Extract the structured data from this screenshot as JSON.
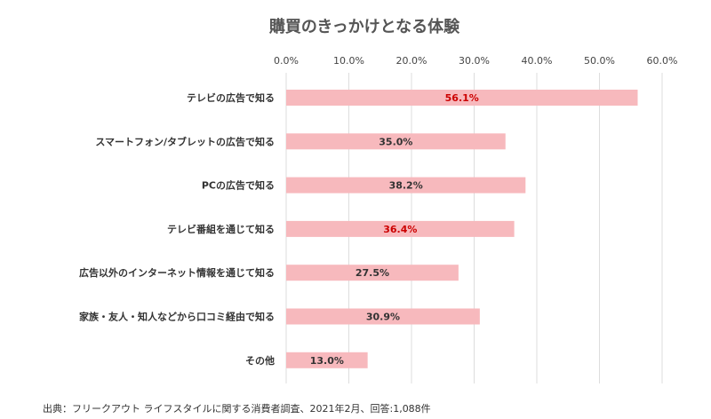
{
  "chart_data": {
    "type": "bar",
    "orientation": "horizontal",
    "title": "購買のきっかけとなる体験",
    "categories": [
      "テレビの広告で知る",
      "スマートフォン/タブレットの広告で知る",
      "PCの広告で知る",
      "テレビ番組を通じて知る",
      "広告以外のインターネット情報を通じて知る",
      "家族・友人・知人などから口コミ経由で知る",
      "その他"
    ],
    "values": [
      56.1,
      35.0,
      38.2,
      36.4,
      27.5,
      30.9,
      13.0
    ],
    "value_labels": [
      "56.1%",
      "35.0%",
      "38.2%",
      "36.4%",
      "27.5%",
      "30.9%",
      "13.0%"
    ],
    "highlighted": [
      true,
      false,
      false,
      true,
      false,
      false,
      false
    ],
    "xlim": [
      0,
      60
    ],
    "xticks": [
      0,
      10,
      20,
      30,
      40,
      50,
      60
    ],
    "xtick_labels": [
      "0.0%",
      "10.0%",
      "20.0%",
      "30.0%",
      "40.0%",
      "50.0%",
      "60.0%"
    ],
    "axis_position": "top",
    "grid": true,
    "bar_color": "#f7b9bd",
    "highlight_label_color": "#cc0000",
    "label_color": "#333333",
    "grid_color": "#dddddd",
    "source_note": "出典：フリークアウト ライフスタイルに関する消費者調査、2021年2月、回答:1,088件"
  }
}
